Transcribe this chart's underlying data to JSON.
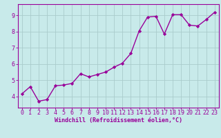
{
  "x": [
    0,
    1,
    2,
    3,
    4,
    5,
    6,
    7,
    8,
    9,
    10,
    11,
    12,
    13,
    14,
    15,
    16,
    17,
    18,
    19,
    20,
    21,
    22,
    23
  ],
  "y": [
    4.15,
    4.6,
    3.7,
    3.8,
    4.65,
    4.7,
    4.8,
    5.4,
    5.2,
    5.35,
    5.5,
    5.8,
    6.05,
    6.65,
    8.05,
    8.9,
    8.95,
    7.85,
    9.05,
    9.05,
    8.4,
    8.35,
    8.75,
    9.2
  ],
  "line_color": "#990099",
  "marker": "D",
  "markersize": 2.2,
  "linewidth": 1.0,
  "bg_color": "#c8eaea",
  "grid_color": "#aacccc",
  "xlabel": "Windchill (Refroidissement éolien,°C)",
  "xlabel_color": "#990099",
  "xlabel_fontsize": 6.0,
  "tick_color": "#990099",
  "tick_fontsize": 6.0,
  "ytick_labels": [
    "4",
    "5",
    "6",
    "7",
    "8",
    "9"
  ],
  "ylim": [
    3.3,
    9.7
  ],
  "xlim": [
    -0.5,
    23.5
  ],
  "yticks": [
    4,
    5,
    6,
    7,
    8,
    9
  ],
  "xticks": [
    0,
    1,
    2,
    3,
    4,
    5,
    6,
    7,
    8,
    9,
    10,
    11,
    12,
    13,
    14,
    15,
    16,
    17,
    18,
    19,
    20,
    21,
    22,
    23
  ]
}
